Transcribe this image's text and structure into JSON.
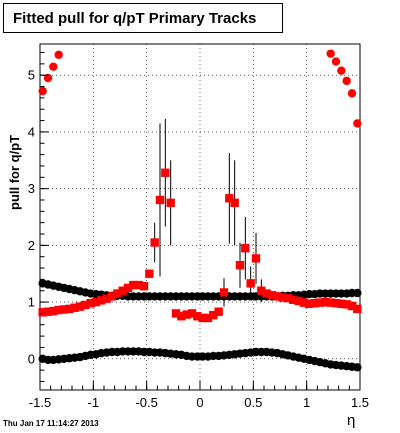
{
  "chart_data": {
    "type": "scatter",
    "title": "Fitted pull for q/pT  Primary Tracks",
    "xlabel": "η",
    "ylabel": "pull for q/pT",
    "xlim": [
      -1.5,
      1.5
    ],
    "ylim": [
      -0.55,
      5.55
    ],
    "x_ticks": [
      "-1.5",
      "-1",
      "-0.5",
      "0",
      "0.5",
      "1",
      "1.5"
    ],
    "y_ticks": [
      "0",
      "1",
      "2",
      "3",
      "4",
      "5"
    ],
    "grid": true,
    "series": [
      {
        "color": "#000000",
        "marker": "circle",
        "x": [
          -1.475,
          -1.425,
          -1.375,
          -1.325,
          -1.275,
          -1.225,
          -1.175,
          -1.125,
          -1.075,
          -1.025,
          -0.975,
          -0.925,
          -0.875,
          -0.825,
          -0.775,
          -0.725,
          -0.675,
          -0.625,
          -0.575,
          -0.525,
          -0.475,
          -0.425,
          -0.375,
          -0.325,
          -0.275,
          -0.225,
          -0.175,
          -0.125,
          -0.075,
          -0.025,
          0.025,
          0.075,
          0.125,
          0.175,
          0.225,
          0.275,
          0.325,
          0.375,
          0.425,
          0.475,
          0.525,
          0.575,
          0.625,
          0.675,
          0.725,
          0.775,
          0.825,
          0.875,
          0.925,
          0.975,
          1.025,
          1.075,
          1.125,
          1.175,
          1.225,
          1.275,
          1.325,
          1.375,
          1.425,
          1.475
        ],
        "y": [
          1.33,
          1.31,
          1.29,
          1.27,
          1.25,
          1.23,
          1.21,
          1.19,
          1.17,
          1.15,
          1.14,
          1.13,
          1.12,
          1.11,
          1.11,
          1.11,
          1.1,
          1.1,
          1.1,
          1.1,
          1.1,
          1.1,
          1.1,
          1.1,
          1.1,
          1.1,
          1.1,
          1.1,
          1.1,
          1.1,
          1.1,
          1.1,
          1.1,
          1.1,
          1.1,
          1.1,
          1.1,
          1.1,
          1.1,
          1.1,
          1.1,
          1.1,
          1.1,
          1.1,
          1.1,
          1.11,
          1.11,
          1.12,
          1.12,
          1.13,
          1.14,
          1.14,
          1.15,
          1.15,
          1.15,
          1.15,
          1.15,
          1.15,
          1.16,
          1.16
        ]
      },
      {
        "color": "#000000",
        "marker": "circle",
        "x": [
          -1.475,
          -1.425,
          -1.375,
          -1.325,
          -1.275,
          -1.225,
          -1.175,
          -1.125,
          -1.075,
          -1.025,
          -0.975,
          -0.925,
          -0.875,
          -0.825,
          -0.775,
          -0.725,
          -0.675,
          -0.625,
          -0.575,
          -0.525,
          -0.475,
          -0.425,
          -0.375,
          -0.325,
          -0.275,
          -0.225,
          -0.175,
          -0.125,
          -0.075,
          -0.025,
          0.025,
          0.075,
          0.125,
          0.175,
          0.225,
          0.275,
          0.325,
          0.375,
          0.425,
          0.475,
          0.525,
          0.575,
          0.625,
          0.675,
          0.725,
          0.775,
          0.825,
          0.875,
          0.925,
          0.975,
          1.025,
          1.075,
          1.125,
          1.175,
          1.225,
          1.275,
          1.325,
          1.375,
          1.425,
          1.475
        ],
        "y": [
          0.0,
          -0.02,
          -0.02,
          -0.01,
          0.0,
          0.01,
          0.02,
          0.03,
          0.05,
          0.07,
          0.08,
          0.1,
          0.11,
          0.12,
          0.12,
          0.13,
          0.13,
          0.13,
          0.13,
          0.12,
          0.12,
          0.11,
          0.11,
          0.1,
          0.09,
          0.08,
          0.07,
          0.05,
          0.04,
          0.04,
          0.04,
          0.04,
          0.05,
          0.05,
          0.06,
          0.07,
          0.08,
          0.09,
          0.1,
          0.11,
          0.12,
          0.12,
          0.12,
          0.11,
          0.1,
          0.08,
          0.06,
          0.04,
          0.02,
          0.0,
          -0.02,
          -0.04,
          -0.06,
          -0.08,
          -0.1,
          -0.11,
          -0.12,
          -0.13,
          -0.14,
          -0.15
        ]
      },
      {
        "color": "#ff0000",
        "marker": "circle",
        "x": [
          -1.475,
          -1.425,
          -1.375,
          -1.325,
          1.225,
          1.275,
          1.325,
          1.375,
          1.425,
          1.475
        ],
        "y": [
          4.72,
          4.95,
          5.15,
          5.36,
          5.38,
          5.24,
          5.08,
          4.9,
          4.68,
          4.15
        ]
      },
      {
        "color": "#ff0000",
        "marker": "square",
        "x": [
          -1.475,
          -1.425,
          -1.375,
          -1.325,
          -1.275,
          -1.225,
          -1.175,
          -1.125,
          -1.075,
          -1.025,
          -0.975,
          -0.925,
          -0.875,
          -0.825,
          -0.775,
          -0.725,
          -0.675,
          -0.625,
          -0.575,
          -0.525,
          -0.475,
          -0.425,
          -0.375,
          -0.325,
          -0.275,
          -0.225,
          -0.175,
          -0.125,
          -0.075,
          -0.025,
          0.025,
          0.075,
          0.125,
          0.175,
          0.225,
          0.275,
          0.325,
          0.375,
          0.425,
          0.475,
          0.525,
          0.575,
          0.625,
          0.675,
          0.725,
          0.775,
          0.825,
          0.875,
          0.925,
          0.975,
          1.025,
          1.075,
          1.125,
          1.175,
          1.225,
          1.275,
          1.325,
          1.375,
          1.425,
          1.475
        ],
        "y": [
          0.82,
          0.83,
          0.84,
          0.86,
          0.87,
          0.88,
          0.9,
          0.92,
          0.95,
          0.98,
          1.0,
          1.03,
          1.06,
          1.1,
          1.15,
          1.2,
          1.25,
          1.3,
          1.3,
          1.28,
          1.5,
          2.05,
          2.8,
          3.28,
          2.75,
          0.8,
          0.75,
          0.78,
          0.8,
          0.75,
          0.72,
          0.72,
          0.77,
          0.83,
          1.17,
          2.83,
          2.75,
          1.65,
          1.95,
          1.33,
          1.77,
          1.2,
          1.15,
          1.12,
          1.1,
          1.08,
          1.07,
          1.04,
          1.02,
          0.99,
          0.97,
          0.98,
          0.99,
          1.0,
          0.99,
          0.98,
          0.97,
          0.96,
          0.93,
          0.88
        ],
        "err": [
          0,
          0,
          0,
          0,
          0,
          0,
          0,
          0,
          0,
          0,
          0,
          0,
          0,
          0,
          0,
          0,
          0,
          0,
          0,
          0,
          0.05,
          0.35,
          1.35,
          0.95,
          0.75,
          0,
          0,
          0,
          0,
          0,
          0,
          0,
          0,
          0,
          0.25,
          0.8,
          0.75,
          0.4,
          0.55,
          0.3,
          0.45,
          0.2,
          0,
          0,
          0,
          0,
          0,
          0,
          0,
          0,
          0,
          0,
          0,
          0,
          0,
          0,
          0,
          0,
          0,
          0
        ]
      }
    ]
  },
  "footer": "Thu Jan 17 11:14:27 2013"
}
